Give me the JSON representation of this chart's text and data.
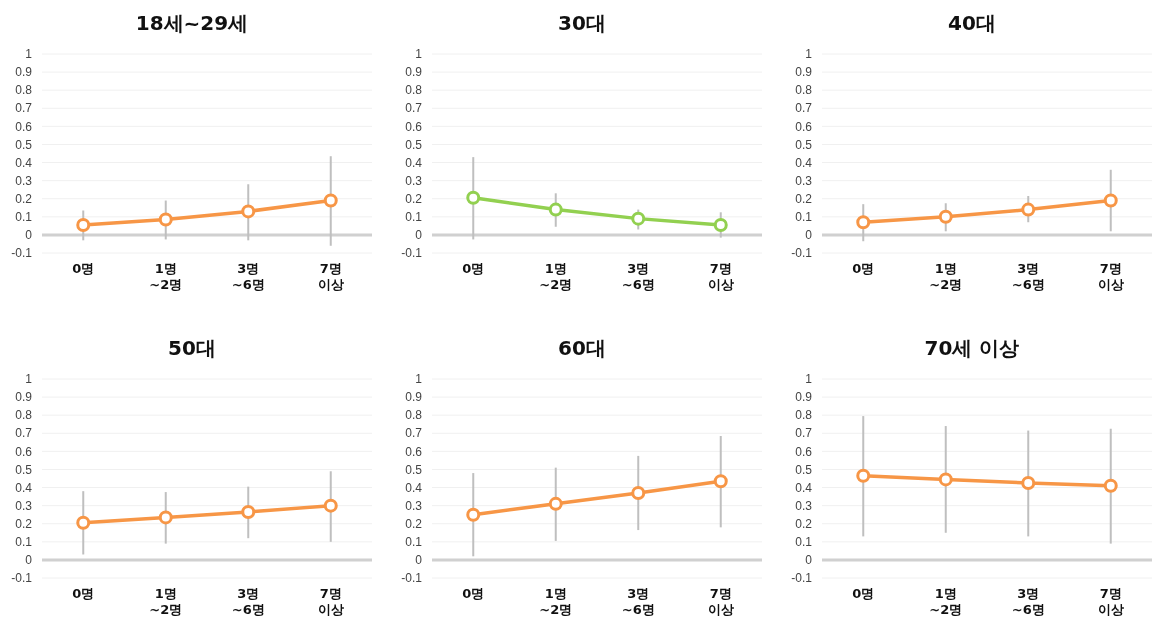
{
  "chart_data": [
    {
      "type": "line",
      "title": "18세~29세",
      "categories": [
        "0명",
        "1명\n~2명",
        "3명\n~6명",
        "7명\n이상"
      ],
      "ylim": [
        -0.1,
        1
      ],
      "yticks": [
        -0.1,
        0,
        0.1,
        0.2,
        0.3,
        0.4,
        0.5,
        0.6,
        0.7,
        0.8,
        0.9,
        1
      ],
      "grid": "y",
      "marker": "circle",
      "series": [
        {
          "color": "#f79646",
          "values": [
            0.055,
            0.085,
            0.13,
            0.19
          ],
          "errors": [
            [
              -0.03,
              0.135
            ],
            [
              -0.025,
              0.19
            ],
            [
              -0.03,
              0.28
            ],
            [
              -0.06,
              0.435
            ]
          ]
        }
      ]
    },
    {
      "type": "line",
      "title": "30대",
      "categories": [
        "0명",
        "1명\n~2명",
        "3명\n~6명",
        "7명\n이상"
      ],
      "ylim": [
        -0.1,
        1
      ],
      "yticks": [
        -0.1,
        0,
        0.1,
        0.2,
        0.3,
        0.4,
        0.5,
        0.6,
        0.7,
        0.8,
        0.9,
        1
      ],
      "grid": "y",
      "marker": "circle",
      "series": [
        {
          "color": "#92d050",
          "values": [
            0.205,
            0.14,
            0.09,
            0.055
          ],
          "errors": [
            [
              -0.025,
              0.43
            ],
            [
              0.045,
              0.23
            ],
            [
              0.03,
              0.14
            ],
            [
              -0.015,
              0.125
            ]
          ]
        }
      ]
    },
    {
      "type": "line",
      "title": "40대",
      "categories": [
        "0명",
        "1명\n~2명",
        "3명\n~6명",
        "7명\n이상"
      ],
      "ylim": [
        -0.1,
        1
      ],
      "yticks": [
        -0.1,
        0,
        0.1,
        0.2,
        0.3,
        0.4,
        0.5,
        0.6,
        0.7,
        0.8,
        0.9,
        1
      ],
      "grid": "y",
      "marker": "circle",
      "series": [
        {
          "color": "#f79646",
          "values": [
            0.07,
            0.1,
            0.14,
            0.19
          ],
          "errors": [
            [
              -0.035,
              0.17
            ],
            [
              0.02,
              0.175
            ],
            [
              0.07,
              0.215
            ],
            [
              0.02,
              0.36
            ]
          ]
        }
      ]
    },
    {
      "type": "line",
      "title": "50대",
      "categories": [
        "0명",
        "1명\n~2명",
        "3명\n~6명",
        "7명\n이상"
      ],
      "ylim": [
        -0.1,
        1
      ],
      "yticks": [
        -0.1,
        0,
        0.1,
        0.2,
        0.3,
        0.4,
        0.5,
        0.6,
        0.7,
        0.8,
        0.9,
        1
      ],
      "grid": "y",
      "marker": "circle",
      "series": [
        {
          "color": "#f79646",
          "values": [
            0.205,
            0.235,
            0.265,
            0.3
          ],
          "errors": [
            [
              0.03,
              0.38
            ],
            [
              0.09,
              0.375
            ],
            [
              0.12,
              0.405
            ],
            [
              0.1,
              0.49
            ]
          ]
        }
      ]
    },
    {
      "type": "line",
      "title": "60대",
      "categories": [
        "0명",
        "1명\n~2명",
        "3명\n~6명",
        "7명\n이상"
      ],
      "ylim": [
        -0.1,
        1
      ],
      "yticks": [
        -0.1,
        0,
        0.1,
        0.2,
        0.3,
        0.4,
        0.5,
        0.6,
        0.7,
        0.8,
        0.9,
        1
      ],
      "grid": "y",
      "marker": "circle",
      "series": [
        {
          "color": "#f79646",
          "values": [
            0.25,
            0.31,
            0.37,
            0.435
          ],
          "errors": [
            [
              0.02,
              0.48
            ],
            [
              0.105,
              0.51
            ],
            [
              0.165,
              0.575
            ],
            [
              0.18,
              0.685
            ]
          ]
        }
      ]
    },
    {
      "type": "line",
      "title": "70세 이상",
      "categories": [
        "0명",
        "1명\n~2명",
        "3명\n~6명",
        "7명\n이상"
      ],
      "ylim": [
        -0.1,
        1
      ],
      "yticks": [
        -0.1,
        0,
        0.1,
        0.2,
        0.3,
        0.4,
        0.5,
        0.6,
        0.7,
        0.8,
        0.9,
        1
      ],
      "grid": "y",
      "marker": "circle",
      "series": [
        {
          "color": "#f79646",
          "values": [
            0.465,
            0.445,
            0.425,
            0.41
          ],
          "errors": [
            [
              0.13,
              0.795
            ],
            [
              0.15,
              0.74
            ],
            [
              0.13,
              0.715
            ],
            [
              0.09,
              0.725
            ]
          ]
        }
      ]
    }
  ]
}
